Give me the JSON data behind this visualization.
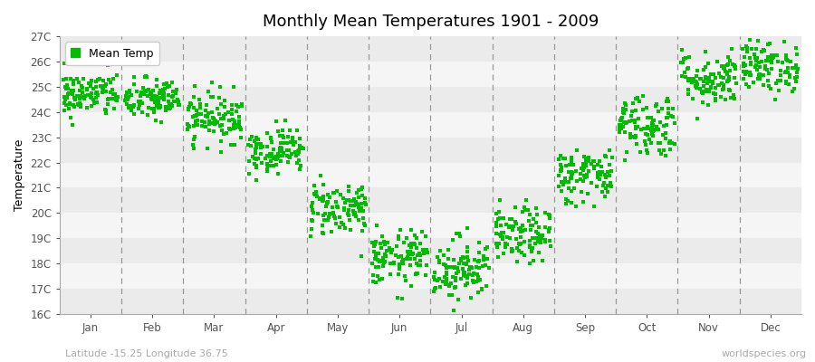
{
  "title": "Monthly Mean Temperatures 1901 - 2009",
  "ylabel": "Temperature",
  "subtitle": "Latitude -15.25 Longitude 36.75",
  "watermark": "worldspecies.org",
  "legend_label": "Mean Temp",
  "months": [
    "Jan",
    "Feb",
    "Mar",
    "Apr",
    "May",
    "Jun",
    "Jul",
    "Aug",
    "Sep",
    "Oct",
    "Nov",
    "Dec"
  ],
  "month_means": [
    24.7,
    24.5,
    23.8,
    22.5,
    20.2,
    18.2,
    17.8,
    19.1,
    21.5,
    23.5,
    25.3,
    25.8
  ],
  "month_stds": [
    0.45,
    0.42,
    0.5,
    0.45,
    0.55,
    0.55,
    0.65,
    0.55,
    0.55,
    0.65,
    0.55,
    0.5
  ],
  "ylim_min": 16,
  "ylim_max": 27,
  "yticks": [
    16,
    17,
    18,
    19,
    20,
    21,
    22,
    23,
    24,
    25,
    26,
    27
  ],
  "ytick_labels": [
    "16C",
    "17C",
    "18C",
    "19C",
    "20C",
    "21C",
    "22C",
    "23C",
    "24C",
    "25C",
    "26C",
    "27C"
  ],
  "n_years": 109,
  "dot_color": "#00bb00",
  "dot_size": 5,
  "background_color": "#ffffff",
  "bg_band_light": "#f5f5f5",
  "bg_band_dark": "#ebebeb",
  "dashed_line_color": "#999999",
  "title_fontsize": 13,
  "axis_label_fontsize": 9,
  "tick_fontsize": 8.5,
  "subtitle_fontsize": 8,
  "watermark_fontsize": 8,
  "seed": 42
}
